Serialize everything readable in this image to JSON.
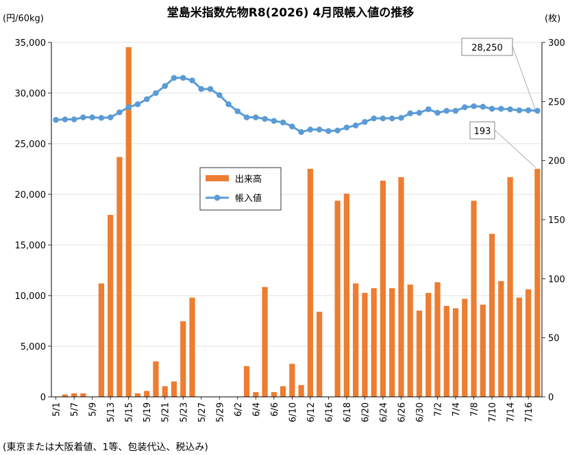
{
  "chart_data": {
    "type": "bar+line",
    "title": "堂島米指数先物R8(2026) 4月限帳入値の推移",
    "left_axis_unit": "(円/60kg)",
    "right_axis_unit": "(枚)",
    "footnote": "(東京または大阪着値、1等、包装代込、税込み)",
    "left_ylim": [
      0,
      35000
    ],
    "left_ticks": [
      "0",
      "5,000",
      "10,000",
      "15,000",
      "20,000",
      "25,000",
      "30,000",
      "35,000"
    ],
    "right_ylim": [
      0,
      300
    ],
    "right_ticks": [
      "0",
      "50",
      "100",
      "150",
      "200",
      "250",
      "300"
    ],
    "x_tick_labels": [
      "5/1",
      "5/7",
      "5/9",
      "5/13",
      "5/15",
      "5/19",
      "5/21",
      "5/23",
      "5/27",
      "5/29",
      "6/2",
      "6/4",
      "6/6",
      "6/10",
      "6/12",
      "6/16",
      "6/18",
      "6/20",
      "6/24",
      "6/26",
      "6/30",
      "7/2",
      "7/4",
      "7/8",
      "7/10",
      "7/14",
      "7/16"
    ],
    "legend": {
      "volume": "出来高",
      "settlement": "帳入値",
      "position": "center"
    },
    "annotations": {
      "last_settlement": "28,250",
      "last_volume": "193"
    },
    "grid": true,
    "series": [
      {
        "name": "出来高",
        "type": "bar",
        "axis": "right",
        "color": "#ED7D31",
        "values": [
          0,
          2,
          3,
          3,
          0,
          96,
          154,
          203,
          296,
          3,
          5,
          30,
          9,
          13,
          64,
          84,
          0,
          0,
          0,
          0,
          0,
          26,
          4,
          93,
          4,
          9,
          28,
          10,
          193,
          72,
          0,
          166,
          172,
          96,
          88,
          92,
          183,
          92,
          186,
          95,
          73,
          88,
          97,
          77,
          75,
          83,
          166,
          78,
          138,
          98,
          186,
          84,
          91,
          193
        ]
      },
      {
        "name": "帳入値",
        "type": "line",
        "axis": "left",
        "color": "#5B9BD5",
        "values": [
          27350,
          27400,
          27400,
          27600,
          27600,
          27550,
          27600,
          28100,
          28600,
          28900,
          29400,
          30000,
          30700,
          31500,
          31500,
          31250,
          30400,
          30400,
          29800,
          28900,
          28200,
          27600,
          27600,
          27450,
          27250,
          27100,
          26700,
          26150,
          26400,
          26400,
          26250,
          26300,
          26600,
          26800,
          27150,
          27500,
          27500,
          27500,
          27550,
          28000,
          28050,
          28400,
          28050,
          28250,
          28250,
          28600,
          28700,
          28650,
          28450,
          28450,
          28400,
          28300,
          28300,
          28250
        ]
      }
    ]
  }
}
